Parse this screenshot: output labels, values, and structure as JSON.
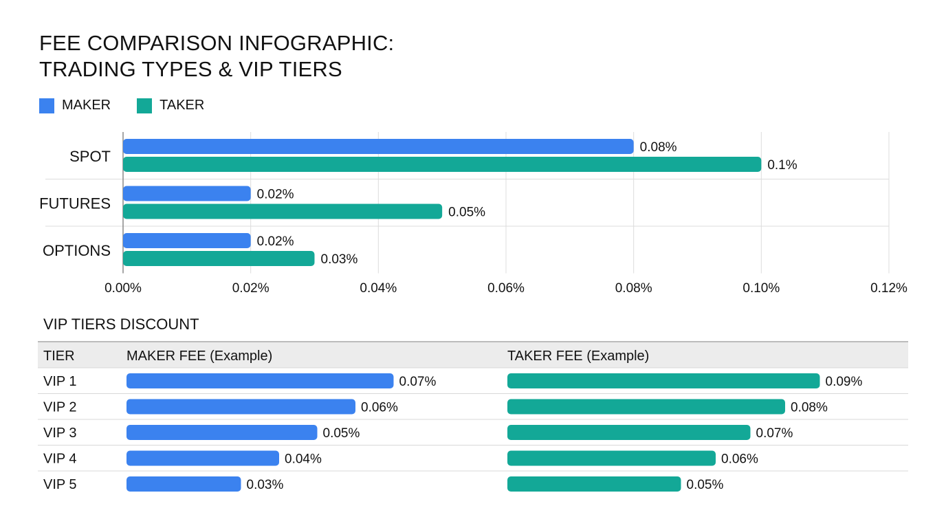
{
  "title_line1": "FEE COMPARISON INFOGRAPHIC:",
  "title_line2": "TRADING TYPES & VIP TIERS",
  "colors": {
    "maker": "#3b82ef",
    "taker": "#13a897"
  },
  "chart_data": [
    {
      "type": "bar",
      "orientation": "horizontal",
      "categories": [
        "SPOT",
        "FUTURES",
        "OPTIONS"
      ],
      "series": [
        {
          "name": "MAKER",
          "values": [
            0.08,
            0.02,
            0.02
          ],
          "labels": [
            "0.08%",
            "0.02%",
            "0.02%"
          ]
        },
        {
          "name": "TAKER",
          "values": [
            0.1,
            0.05,
            0.03
          ],
          "labels": [
            "0.1%",
            "0.05%",
            "0.03%"
          ]
        }
      ],
      "xlim": [
        0,
        0.12
      ],
      "xticks": [
        "0.00%",
        "0.02%",
        "0.04%",
        "0.06%",
        "0.08%",
        "0.10%",
        "0.12%"
      ],
      "grid": true,
      "legend": "top-left"
    },
    {
      "type": "table",
      "title": "VIP TIERS DISCOUNT",
      "columns": [
        "TIER",
        "MAKER FEE (Example)",
        "TAKER FEE (Example)"
      ],
      "rows": [
        {
          "tier": "VIP 1",
          "maker": 0.07,
          "maker_label": "0.07%",
          "taker": 0.09,
          "taker_label": "0.09%"
        },
        {
          "tier": "VIP 2",
          "maker": 0.06,
          "maker_label": "0.06%",
          "taker": 0.08,
          "taker_label": "0.08%"
        },
        {
          "tier": "VIP 3",
          "maker": 0.05,
          "maker_label": "0.05%",
          "taker": 0.07,
          "taker_label": "0.07%"
        },
        {
          "tier": "VIP 4",
          "maker": 0.04,
          "maker_label": "0.04%",
          "taker": 0.06,
          "taker_label": "0.06%"
        },
        {
          "tier": "VIP 5",
          "maker": 0.03,
          "maker_label": "0.03%",
          "taker": 0.05,
          "taker_label": "0.05%"
        }
      ]
    }
  ]
}
